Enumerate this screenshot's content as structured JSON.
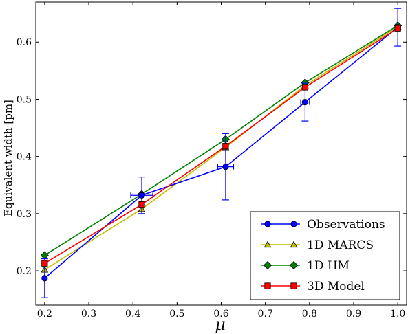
{
  "chart_data": {
    "type": "line",
    "xlabel": "μ",
    "ylabel": "Equivalent width [pm]",
    "xlim": [
      0.18,
      1.02
    ],
    "ylim": [
      0.14,
      0.67
    ],
    "x_ticks": [
      0.2,
      0.3,
      0.4,
      0.5,
      0.6,
      0.7,
      0.8,
      0.9,
      1.0
    ],
    "x_tick_labels": [
      "0.2",
      "0.3",
      "0.4",
      "0.5",
      "0.6",
      "0.7",
      "0.8",
      "0.9",
      "1.0"
    ],
    "y_ticks": [
      0.2,
      0.3,
      0.4,
      0.5,
      0.6
    ],
    "y_tick_labels": [
      "0.2",
      "0.3",
      "0.4",
      "0.5",
      "0.6"
    ],
    "grid": false,
    "legend_position": "bottom-right",
    "series": [
      {
        "name": "Observations",
        "color": "#0000ff",
        "marker": "circle",
        "x": [
          0.2,
          0.42,
          0.61,
          0.79,
          1.0
        ],
        "y": [
          0.187,
          0.332,
          0.382,
          0.495,
          0.626
        ],
        "yerr": [
          0.034,
          0.032,
          0.058,
          0.033,
          0.033
        ],
        "xerr": [
          0.0,
          0.025,
          0.018,
          0.01,
          0.0
        ]
      },
      {
        "name": "1D MARCS",
        "color": "#bfbf00",
        "marker": "triangle",
        "x": [
          0.2,
          0.42,
          0.61,
          0.79,
          1.0
        ],
        "y": [
          0.202,
          0.308,
          0.416,
          0.524,
          0.627
        ]
      },
      {
        "name": "1D HM",
        "color": "#008000",
        "marker": "diamond",
        "x": [
          0.2,
          0.42,
          0.61,
          0.79,
          1.0
        ],
        "y": [
          0.227,
          0.334,
          0.43,
          0.529,
          0.629
        ]
      },
      {
        "name": "3D Model",
        "color": "#ff0000",
        "marker": "square",
        "x": [
          0.2,
          0.42,
          0.61,
          0.79,
          1.0
        ],
        "y": [
          0.213,
          0.316,
          0.418,
          0.521,
          0.624
        ]
      }
    ]
  }
}
